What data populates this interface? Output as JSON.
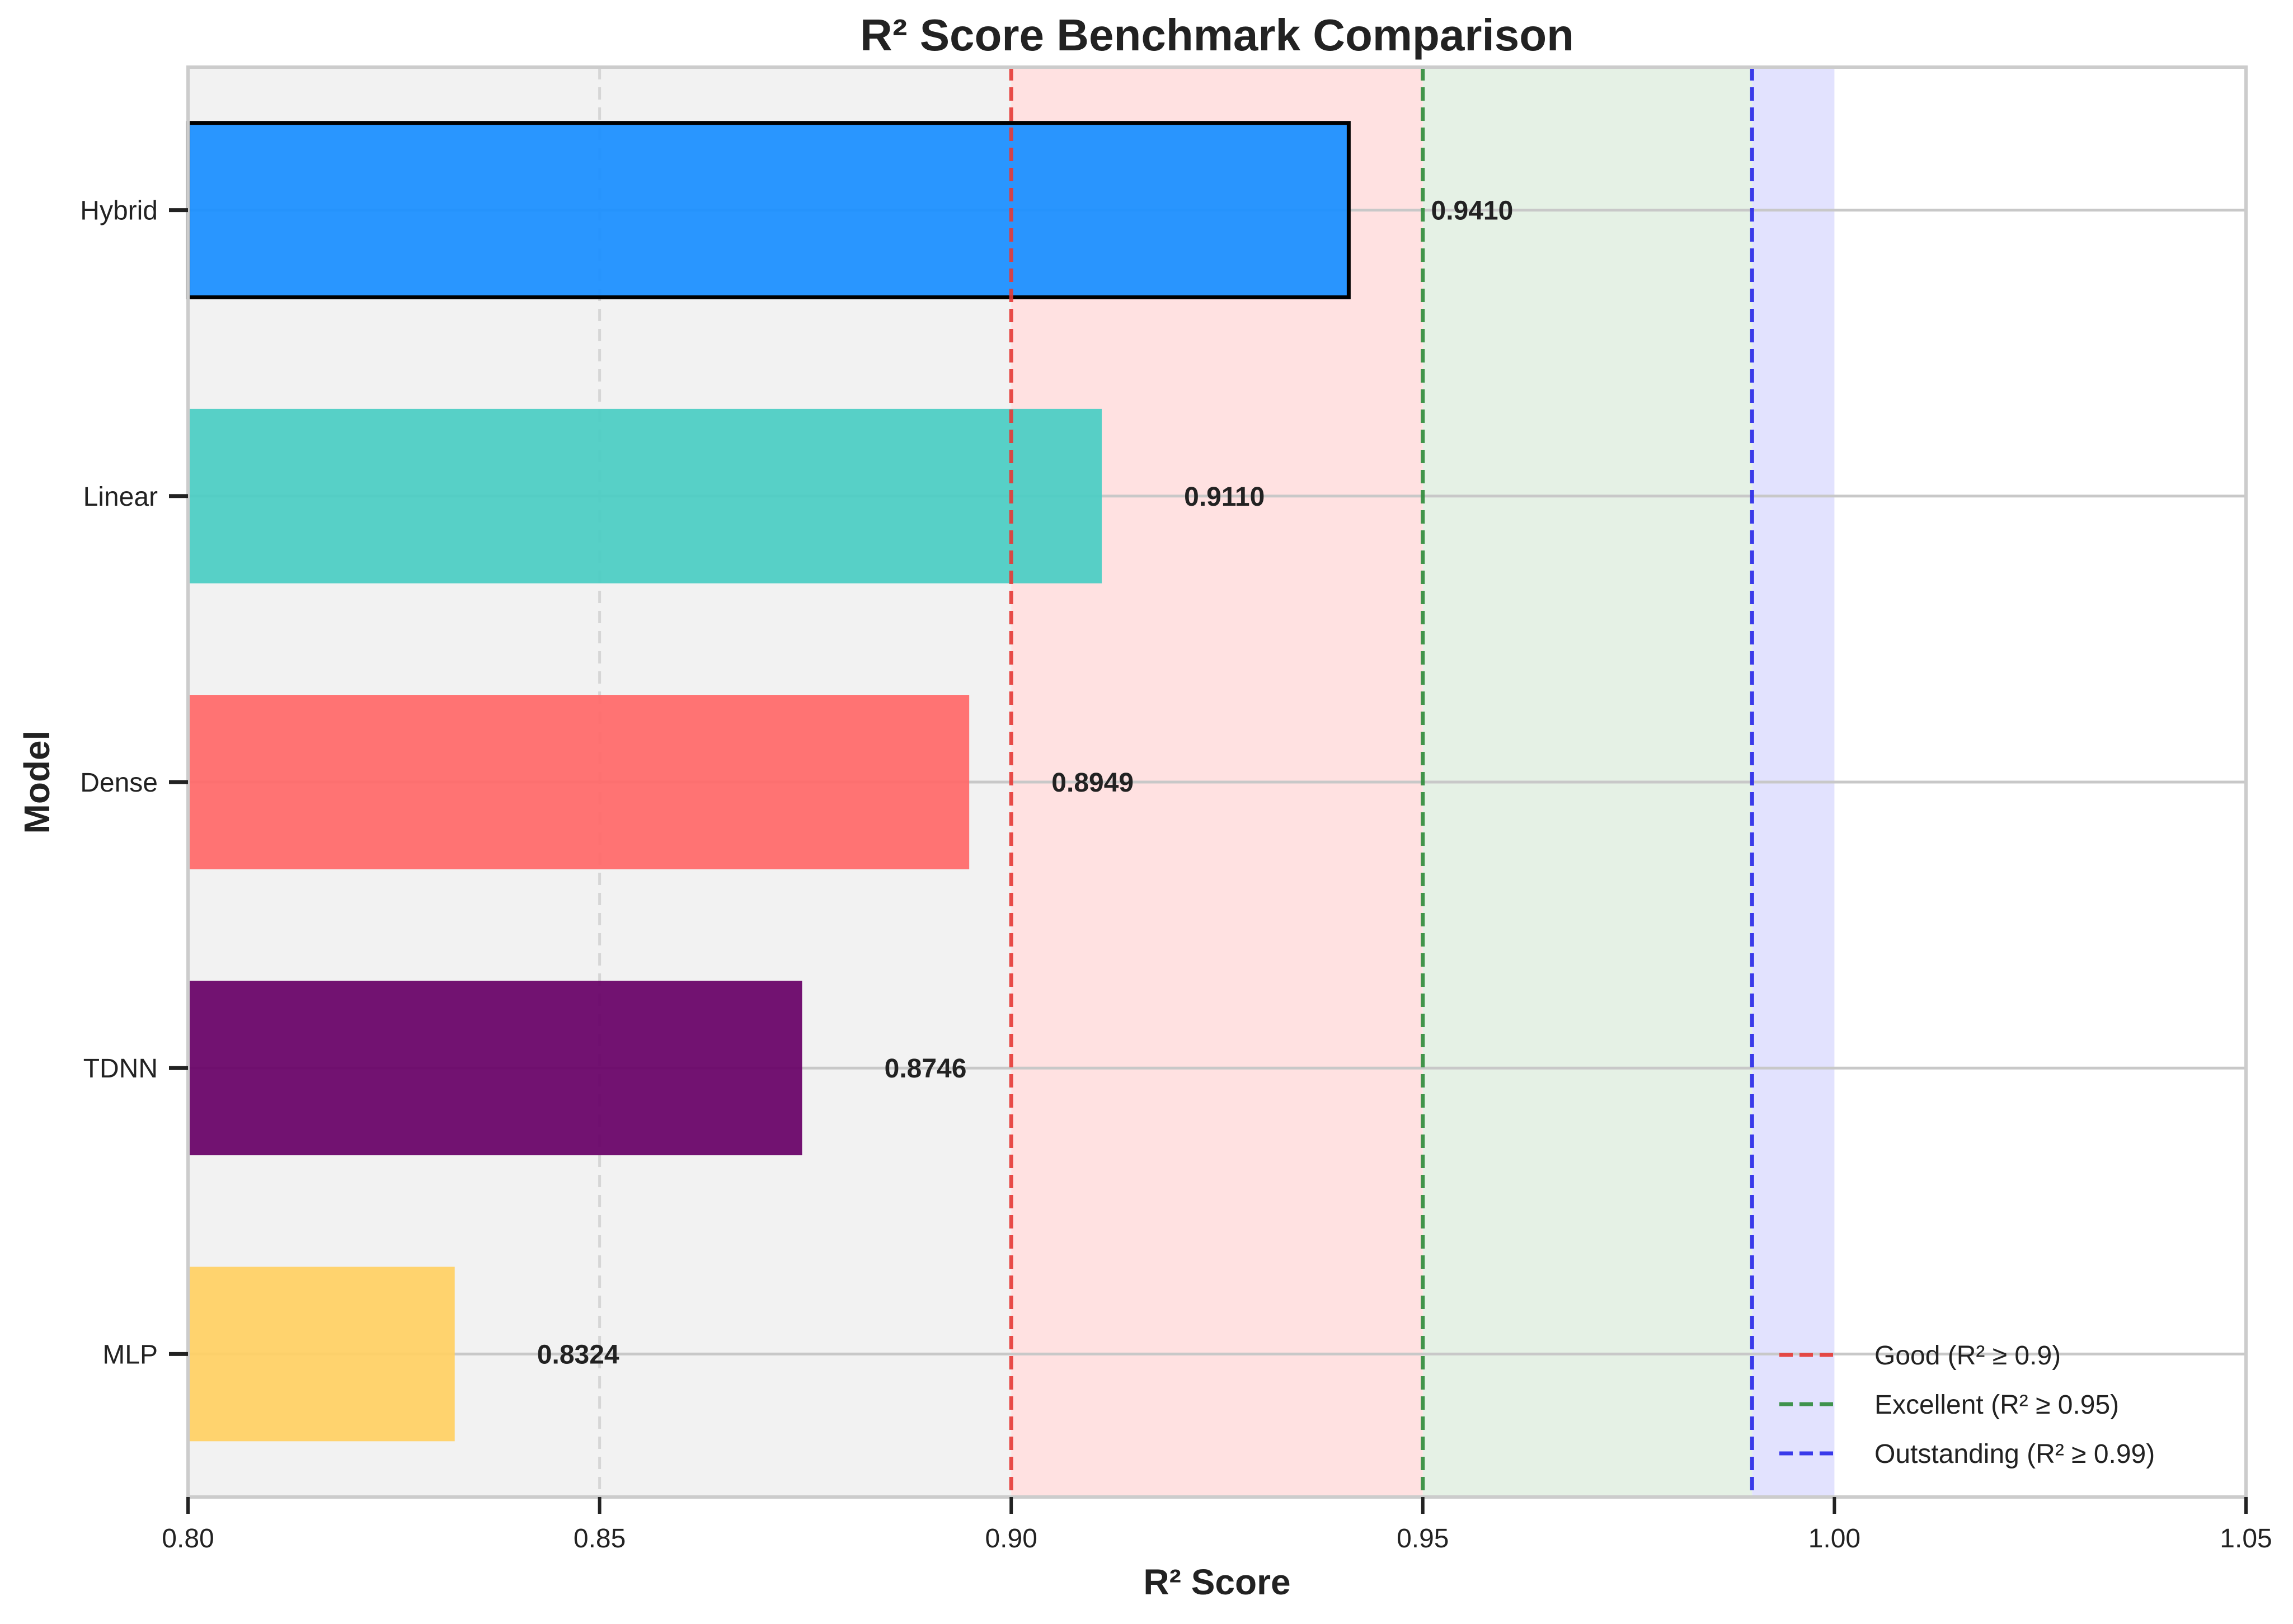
{
  "chart_data": {
    "type": "bar",
    "orientation": "horizontal",
    "title": "R² Score Benchmark Comparison",
    "xlabel": "R² Score",
    "ylabel": "Model",
    "xlim": [
      0.8,
      1.05
    ],
    "x_ticks": [
      "0.80",
      "0.85",
      "0.90",
      "0.95",
      "1.00",
      "1.05"
    ],
    "categories": [
      "Hybrid",
      "Linear",
      "Dense",
      "TDNN",
      "MLP"
    ],
    "values": [
      0.941,
      0.911,
      0.8949,
      0.8746,
      0.8324
    ],
    "value_labels": [
      "0.9410",
      "0.9110",
      "0.8949",
      "0.8746",
      "0.8324"
    ],
    "bar_colors": [
      "#1e90ff",
      "#4ecdc4",
      "#ff6b6b",
      "#6a0569",
      "#ffd166"
    ],
    "highlighted_category": "Hybrid",
    "background_color": "#f2f2f2",
    "bands": [
      {
        "from": 0.9,
        "to": 0.95,
        "color": "#ffe1e1"
      },
      {
        "from": 0.95,
        "to": 0.99,
        "color": "#e5f1e5"
      },
      {
        "from": 0.99,
        "to": 1.0,
        "color": "#e2e2fe"
      }
    ],
    "thresholds": [
      {
        "value": 0.9,
        "label": "Good (R² ≥ 0.9)",
        "color": "#e53935"
      },
      {
        "value": 0.95,
        "label": "Excellent (R² ≥ 0.95)",
        "color": "#2e8b3a"
      },
      {
        "value": 0.99,
        "label": "Outstanding (R² ≥ 0.99)",
        "color": "#2727e8"
      }
    ],
    "grid": true,
    "legend_position": "bottom-right"
  }
}
